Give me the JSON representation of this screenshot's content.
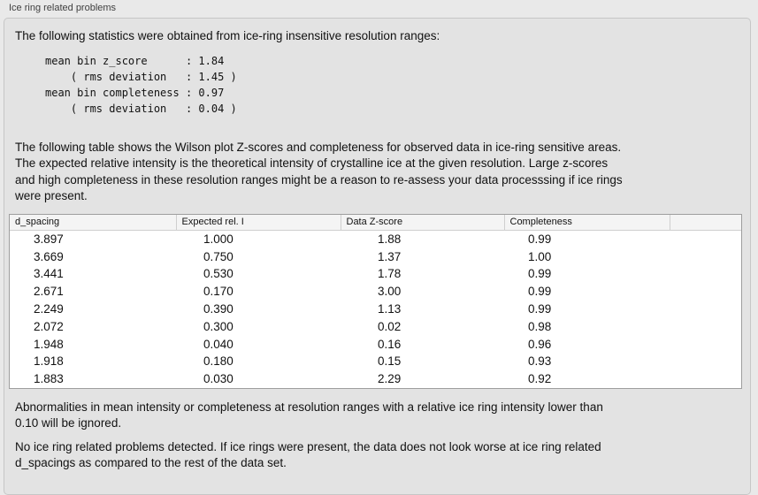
{
  "group": {
    "title": "Ice ring related problems"
  },
  "intro_text": "The following statistics were obtained from ice-ring insensitive resolution ranges:",
  "stats_block": "mean bin z_score      : 1.84\n    ( rms deviation   : 1.45 )\nmean bin completeness : 0.97\n    ( rms deviation   : 0.04 )",
  "stats": {
    "mean_bin_z_score": "1.84",
    "z_score_rms_deviation": "1.45",
    "mean_bin_completeness": "0.97",
    "completeness_rms_deviation": "0.04"
  },
  "table_description": "The following table shows the Wilson plot Z-scores and completeness for observed data in ice-ring sensitive areas.\nThe expected relative intensity is the theoretical intensity of crystalline ice at the given resolution. Large z-scores\nand high completeness in these resolution ranges might be a reason to re-assess your data processsing if ice rings\nwere present.",
  "table": {
    "columns": [
      "d_spacing",
      "Expected rel. I",
      "Data Z-score",
      "Completeness",
      ""
    ],
    "rows": [
      [
        "3.897",
        "1.000",
        "1.88",
        "0.99"
      ],
      [
        "3.669",
        "0.750",
        "1.37",
        "1.00"
      ],
      [
        "3.441",
        "0.530",
        "1.78",
        "0.99"
      ],
      [
        "2.671",
        "0.170",
        "3.00",
        "0.99"
      ],
      [
        "2.249",
        "0.390",
        "1.13",
        "0.99"
      ],
      [
        "2.072",
        "0.300",
        "0.02",
        "0.98"
      ],
      [
        "1.948",
        "0.040",
        "0.16",
        "0.96"
      ],
      [
        "1.918",
        "0.180",
        "0.15",
        "0.93"
      ],
      [
        "1.883",
        "0.030",
        "2.29",
        "0.92"
      ]
    ]
  },
  "ignore_note": "Abnormalities in mean intensity or completeness at resolution ranges with a relative ice ring intensity lower than\n0.10 will be ignored.",
  "conclusion_text": "No ice ring related problems detected. If ice rings were present, the data does not look worse at ice ring related\nd_spacings as compared to the rest of the data set.",
  "colors": {
    "page_bg": "#e9e9e9",
    "box_bg": "#e3e3e3",
    "box_border": "#c6c6c6",
    "label_text": "#3f3f3f",
    "text": "#111111",
    "table_bg": "#ffffff",
    "table_border": "#9e9e9e",
    "header_bg": "#f4f4f4",
    "header_sep": "#cfcfcf"
  }
}
